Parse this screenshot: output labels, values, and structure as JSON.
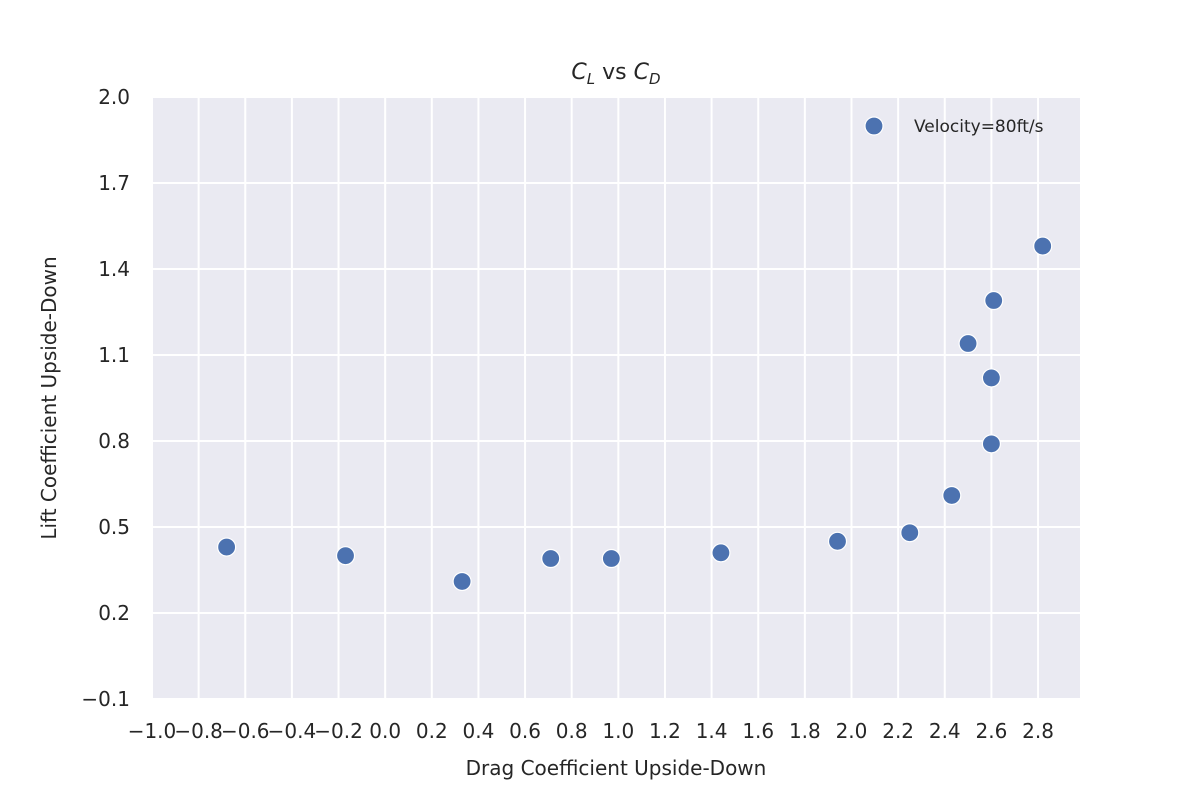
{
  "chart_data": {
    "type": "scatter",
    "title": {
      "main": "C",
      "sub_l": "L",
      "mid": " vs ",
      "main2": "C",
      "sub_d": "D"
    },
    "xlabel": "Drag Coefficient Upside-Down",
    "ylabel": "Lift Coefficient Upside-Down",
    "xlim": [
      -1.0,
      2.98
    ],
    "ylim": [
      -0.1,
      2.0
    ],
    "xticks": [
      -1.0,
      -0.8,
      -0.6,
      -0.4,
      -0.2,
      0.0,
      0.2,
      0.4,
      0.6,
      0.8,
      1.0,
      1.2,
      1.4,
      1.6,
      1.8,
      2.0,
      2.2,
      2.4,
      2.6,
      2.8
    ],
    "xtick_labels": [
      "−1.0",
      "−0.8",
      "−0.6",
      "−0.4",
      "−0.2",
      "0.0",
      "0.2",
      "0.4",
      "0.6",
      "0.8",
      "1.0",
      "1.2",
      "1.4",
      "1.6",
      "1.8",
      "2.0",
      "2.2",
      "2.4",
      "2.6",
      "2.8"
    ],
    "yticks": [
      -0.1,
      0.2,
      0.5,
      0.8,
      1.1,
      1.4,
      1.7,
      2.0
    ],
    "ytick_labels": [
      "−0.1",
      "0.2",
      "0.5",
      "0.8",
      "1.1",
      "1.4",
      "1.7",
      "2.0"
    ],
    "grid": true,
    "legend_position": "top-right",
    "series": [
      {
        "name": "Velocity=80ft/s",
        "color": "#4c72b0",
        "points": [
          {
            "x": -0.68,
            "y": 0.43
          },
          {
            "x": -0.17,
            "y": 0.4
          },
          {
            "x": 0.33,
            "y": 0.31
          },
          {
            "x": 0.71,
            "y": 0.39
          },
          {
            "x": 0.97,
            "y": 0.39
          },
          {
            "x": 1.44,
            "y": 0.41
          },
          {
            "x": 1.94,
            "y": 0.45
          },
          {
            "x": 2.25,
            "y": 0.48
          },
          {
            "x": 2.43,
            "y": 0.61
          },
          {
            "x": 2.6,
            "y": 0.79
          },
          {
            "x": 2.6,
            "y": 1.02
          },
          {
            "x": 2.5,
            "y": 1.14
          },
          {
            "x": 2.61,
            "y": 1.29
          },
          {
            "x": 2.82,
            "y": 1.48
          }
        ]
      }
    ],
    "colors": {
      "plot_background": "#eaeaf2",
      "grid": "#ffffff",
      "marker_edge": "#ffffff"
    }
  }
}
